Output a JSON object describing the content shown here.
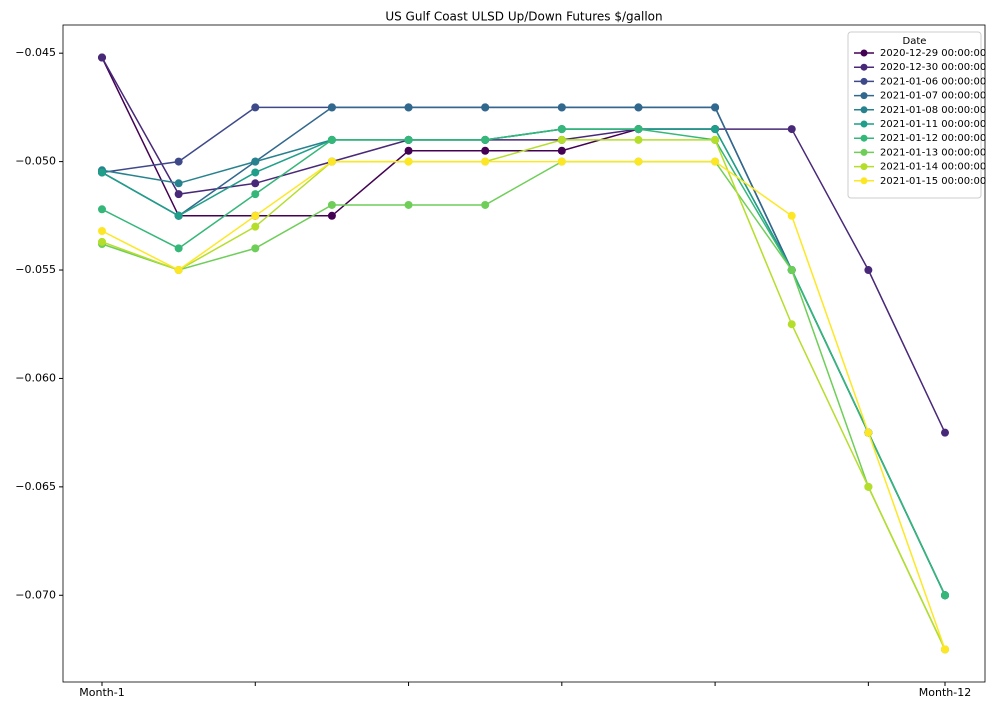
{
  "chart_data": {
    "type": "line",
    "title": "US Gulf Coast ULSD Up/Down Futures $/gallon",
    "categories": [
      "Month-1",
      null,
      null,
      null,
      null,
      null,
      null,
      null,
      null,
      null,
      null,
      "Month-12"
    ],
    "ylim": [
      -0.074,
      -0.0437
    ],
    "yticks": [
      {
        "value": -0.045,
        "label": "−0.045"
      },
      {
        "value": -0.05,
        "label": "−0.050"
      },
      {
        "value": -0.055,
        "label": "−0.055"
      },
      {
        "value": -0.06,
        "label": "−0.060"
      },
      {
        "value": -0.065,
        "label": "−0.065"
      },
      {
        "value": -0.07,
        "label": "−0.070"
      }
    ],
    "grid": false,
    "legend": {
      "title": "Date",
      "position": "upper right"
    },
    "series": [
      {
        "name": "2020-12-29 00:00:00",
        "color": "#440154",
        "values": [
          -0.0452,
          -0.0525,
          -0.0525,
          -0.0525,
          -0.0495,
          -0.0495,
          -0.0495,
          -0.0485,
          -0.0485,
          null,
          null,
          null
        ]
      },
      {
        "name": "2020-12-30 00:00:00",
        "color": "#482878",
        "values": [
          -0.0452,
          -0.0515,
          -0.051,
          -0.05,
          -0.049,
          -0.049,
          -0.049,
          -0.0485,
          -0.0485,
          -0.0485,
          -0.055,
          -0.0625
        ]
      },
      {
        "name": "2021-01-06 00:00:00",
        "color": "#3e4989",
        "values": [
          -0.0505,
          -0.05,
          -0.0475,
          -0.0475,
          -0.0475,
          -0.0475,
          -0.0475,
          -0.0475,
          -0.0475,
          -0.055,
          -0.0625,
          -0.07
        ]
      },
      {
        "name": "2021-01-07 00:00:00",
        "color": "#31688e",
        "values": [
          -0.0505,
          -0.0525,
          -0.05,
          -0.0475,
          -0.0475,
          -0.0475,
          -0.0475,
          -0.0475,
          -0.0475,
          -0.055,
          -0.0625,
          -0.07
        ]
      },
      {
        "name": "2021-01-08 00:00:00",
        "color": "#26828e",
        "values": [
          -0.0504,
          -0.051,
          -0.05,
          -0.049,
          -0.049,
          -0.049,
          -0.0485,
          -0.0485,
          -0.0485,
          -0.055,
          -0.0625,
          -0.07
        ]
      },
      {
        "name": "2021-01-11 00:00:00",
        "color": "#1f9e89",
        "values": [
          -0.0505,
          -0.0525,
          -0.0505,
          -0.049,
          -0.049,
          -0.049,
          -0.0485,
          -0.0485,
          -0.0485,
          -0.055,
          -0.0625,
          -0.07
        ]
      },
      {
        "name": "2021-01-12 00:00:00",
        "color": "#35b779",
        "values": [
          -0.0522,
          -0.054,
          -0.0515,
          -0.049,
          -0.049,
          -0.049,
          -0.0485,
          -0.0485,
          -0.049,
          -0.055,
          -0.0625,
          -0.07
        ]
      },
      {
        "name": "2021-01-13 00:00:00",
        "color": "#6ece58",
        "values": [
          -0.0538,
          -0.055,
          -0.054,
          -0.052,
          -0.052,
          -0.052,
          -0.05,
          -0.05,
          -0.05,
          -0.055,
          -0.065,
          -0.0725
        ]
      },
      {
        "name": "2021-01-14 00:00:00",
        "color": "#b5de2b",
        "values": [
          -0.0537,
          -0.055,
          -0.053,
          -0.05,
          -0.05,
          -0.05,
          -0.049,
          -0.049,
          -0.049,
          -0.0575,
          -0.065,
          -0.0725
        ]
      },
      {
        "name": "2021-01-15 00:00:00",
        "color": "#fde725",
        "values": [
          -0.0532,
          -0.055,
          -0.0525,
          -0.05,
          -0.05,
          -0.05,
          -0.05,
          -0.05,
          -0.05,
          -0.0525,
          -0.0625,
          -0.0725
        ]
      }
    ]
  }
}
